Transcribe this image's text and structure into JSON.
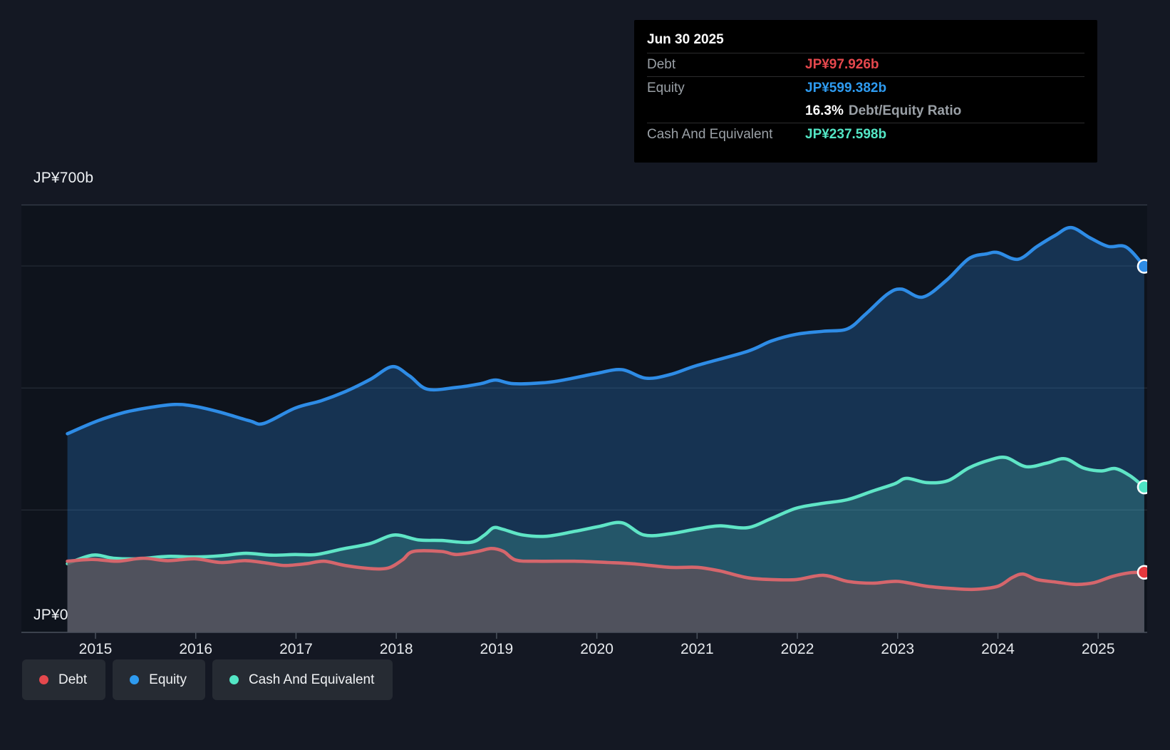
{
  "colors": {
    "page_bg": "#141823",
    "plot_bg": "#0e131c",
    "grid": "#252b35",
    "grid_top": "#373e4a",
    "axis": "#4a515c",
    "tick_text": "#e6e9ed",
    "text_primary": "#eef1f4",
    "text_secondary": "#9aa0a6",
    "legend_bg": "#262b33"
  },
  "chart": {
    "y_label_top": "JP¥700b",
    "y_label_bottom": "JP¥0"
  },
  "tooltip": {
    "date": "Jun 30 2025",
    "debt": {
      "label": "Debt",
      "value": "JP¥97.926b",
      "color": "#e5484d"
    },
    "equity": {
      "label": "Equity",
      "value": "JP¥599.382b",
      "color": "#2e9bf0"
    },
    "ratio": {
      "value": "16.3%",
      "label": "Debt/Equity Ratio"
    },
    "cash": {
      "label": "Cash And Equivalent",
      "value": "JP¥237.598b",
      "color": "#53e6c5"
    }
  },
  "legend": {
    "items": [
      {
        "label": "Debt",
        "color": "#e5484d"
      },
      {
        "label": "Equity",
        "color": "#2e9bf0"
      },
      {
        "label": "Cash And Equivalent",
        "color": "#53e6c5"
      }
    ]
  },
  "chart_data": {
    "type": "area",
    "unit": "JP¥ billions",
    "x_axis": {
      "ticks": [
        2015,
        2016,
        2017,
        2018,
        2019,
        2020,
        2021,
        2022,
        2023,
        2024,
        2025
      ],
      "range": [
        2014.72,
        2025.5
      ]
    },
    "y_axis": {
      "range": [
        0,
        700
      ],
      "gridline_values": [
        700,
        600,
        400,
        200,
        0
      ],
      "labeled": [
        "JP¥700b",
        "JP¥0"
      ]
    },
    "legend_position": "bottom-left",
    "paint_order": [
      "Equity",
      "Cash And Equivalent",
      "Debt"
    ],
    "series": [
      {
        "name": "Debt",
        "line_color": "#d5666c",
        "marker_color": "#e5383e",
        "fill_color": "rgba(90,82,90,0.82)",
        "points": [
          [
            2014.72,
            116
          ],
          [
            2014.97,
            119
          ],
          [
            2015.22,
            116
          ],
          [
            2015.47,
            121
          ],
          [
            2015.72,
            117
          ],
          [
            2015.99,
            120
          ],
          [
            2016.25,
            114
          ],
          [
            2016.5,
            117
          ],
          [
            2016.75,
            112
          ],
          [
            2016.89,
            109
          ],
          [
            2017.1,
            112
          ],
          [
            2017.28,
            116
          ],
          [
            2017.49,
            109
          ],
          [
            2017.74,
            104
          ],
          [
            2017.92,
            105
          ],
          [
            2018.06,
            118
          ],
          [
            2018.17,
            132
          ],
          [
            2018.45,
            132
          ],
          [
            2018.6,
            127
          ],
          [
            2018.81,
            132
          ],
          [
            2018.95,
            137
          ],
          [
            2019.07,
            132
          ],
          [
            2019.19,
            118
          ],
          [
            2019.4,
            116
          ],
          [
            2019.78,
            116
          ],
          [
            2020.11,
            114
          ],
          [
            2020.35,
            112
          ],
          [
            2020.73,
            106
          ],
          [
            2021.0,
            106
          ],
          [
            2021.23,
            100
          ],
          [
            2021.5,
            89
          ],
          [
            2021.74,
            86
          ],
          [
            2021.99,
            86
          ],
          [
            2022.26,
            93
          ],
          [
            2022.5,
            83
          ],
          [
            2022.75,
            80
          ],
          [
            2023.0,
            83
          ],
          [
            2023.29,
            75
          ],
          [
            2023.57,
            71
          ],
          [
            2023.78,
            70
          ],
          [
            2024.0,
            75
          ],
          [
            2024.14,
            89
          ],
          [
            2024.25,
            95
          ],
          [
            2024.39,
            86
          ],
          [
            2024.57,
            82
          ],
          [
            2024.78,
            78
          ],
          [
            2024.96,
            81
          ],
          [
            2025.14,
            91
          ],
          [
            2025.31,
            97
          ],
          [
            2025.46,
            97.926
          ]
        ]
      },
      {
        "name": "Equity",
        "line_color": "#2e8ce6",
        "marker_color": "#2e8ce6",
        "fill_color": "rgba(46,139,230,0.27)",
        "points": [
          [
            2014.72,
            325
          ],
          [
            2015.02,
            346
          ],
          [
            2015.29,
            360
          ],
          [
            2015.54,
            368
          ],
          [
            2015.79,
            373
          ],
          [
            2015.99,
            370
          ],
          [
            2016.25,
            360
          ],
          [
            2016.54,
            346
          ],
          [
            2016.68,
            342
          ],
          [
            2016.99,
            367
          ],
          [
            2017.25,
            379
          ],
          [
            2017.49,
            394
          ],
          [
            2017.74,
            414
          ],
          [
            2017.96,
            435
          ],
          [
            2018.13,
            420
          ],
          [
            2018.31,
            398
          ],
          [
            2018.6,
            401
          ],
          [
            2018.84,
            407
          ],
          [
            2018.99,
            413
          ],
          [
            2019.17,
            407
          ],
          [
            2019.5,
            409
          ],
          [
            2019.73,
            415
          ],
          [
            2020.0,
            424
          ],
          [
            2020.25,
            430
          ],
          [
            2020.49,
            416
          ],
          [
            2020.73,
            422
          ],
          [
            2021.0,
            437
          ],
          [
            2021.5,
            460
          ],
          [
            2021.74,
            477
          ],
          [
            2021.99,
            488
          ],
          [
            2022.26,
            493
          ],
          [
            2022.5,
            497
          ],
          [
            2022.68,
            521
          ],
          [
            2022.9,
            554
          ],
          [
            2023.04,
            562
          ],
          [
            2023.25,
            549
          ],
          [
            2023.49,
            577
          ],
          [
            2023.71,
            612
          ],
          [
            2023.89,
            620
          ],
          [
            2024.0,
            622
          ],
          [
            2024.2,
            611
          ],
          [
            2024.39,
            632
          ],
          [
            2024.57,
            650
          ],
          [
            2024.73,
            663
          ],
          [
            2024.92,
            646
          ],
          [
            2025.1,
            632
          ],
          [
            2025.28,
            631
          ],
          [
            2025.46,
            599.382
          ]
        ]
      },
      {
        "name": "Cash And Equivalent",
        "line_color": "#5fe5c6",
        "marker_color": "#4ee3c4",
        "fill_color": "rgba(95,229,201,0.20)",
        "points": [
          [
            2014.72,
            112
          ],
          [
            2014.97,
            126
          ],
          [
            2015.18,
            121
          ],
          [
            2015.42,
            120
          ],
          [
            2015.72,
            124
          ],
          [
            2015.99,
            123
          ],
          [
            2016.25,
            125
          ],
          [
            2016.5,
            129
          ],
          [
            2016.75,
            126
          ],
          [
            2016.99,
            127
          ],
          [
            2017.2,
            127
          ],
          [
            2017.46,
            136
          ],
          [
            2017.74,
            145
          ],
          [
            2017.98,
            159
          ],
          [
            2018.22,
            151
          ],
          [
            2018.45,
            150
          ],
          [
            2018.74,
            147
          ],
          [
            2018.88,
            159
          ],
          [
            2018.97,
            171
          ],
          [
            2019.07,
            168
          ],
          [
            2019.26,
            159
          ],
          [
            2019.5,
            157
          ],
          [
            2019.78,
            165
          ],
          [
            2020.02,
            173
          ],
          [
            2020.25,
            179
          ],
          [
            2020.47,
            159
          ],
          [
            2020.73,
            161
          ],
          [
            2021.0,
            169
          ],
          [
            2021.23,
            174
          ],
          [
            2021.5,
            171
          ],
          [
            2021.74,
            186
          ],
          [
            2021.99,
            203
          ],
          [
            2022.26,
            211
          ],
          [
            2022.5,
            217
          ],
          [
            2022.75,
            231
          ],
          [
            2022.97,
            243
          ],
          [
            2023.09,
            252
          ],
          [
            2023.29,
            245
          ],
          [
            2023.5,
            248
          ],
          [
            2023.71,
            269
          ],
          [
            2023.92,
            282
          ],
          [
            2024.08,
            286
          ],
          [
            2024.28,
            271
          ],
          [
            2024.49,
            277
          ],
          [
            2024.67,
            284
          ],
          [
            2024.85,
            269
          ],
          [
            2025.03,
            264
          ],
          [
            2025.17,
            268
          ],
          [
            2025.31,
            257
          ],
          [
            2025.42,
            243
          ],
          [
            2025.46,
            237.598
          ]
        ]
      }
    ]
  }
}
